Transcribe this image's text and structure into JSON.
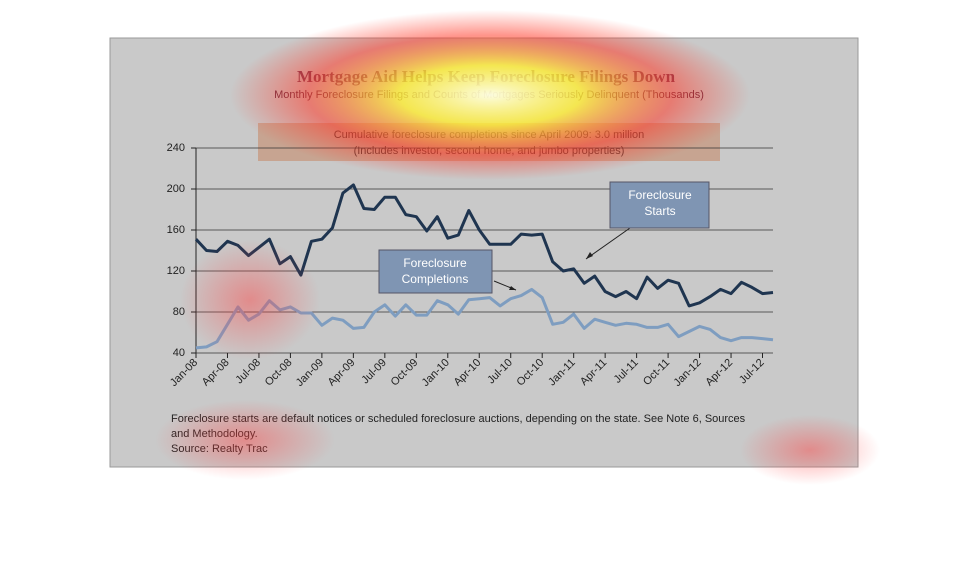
{
  "chart_data": {
    "type": "line",
    "title": "Mortgage Aid Helps Keep Foreclosure Filings Down",
    "subtitle": "Monthly Foreclosure Filings and Counts of Mortgages Seriously Delinquent (Thousands)",
    "box_note": [
      "Cumulative foreclosure completions since April 2009: 3.0 million",
      "(Includes investor, second home, and jumbo properties)"
    ],
    "annotations": [
      [
        "Foreclosure",
        "Starts"
      ],
      [
        "Foreclosure",
        "Completions"
      ]
    ],
    "footnote": [
      "Foreclosure starts are default notices or scheduled foreclosure auctions, depending on the state. See Note 6, Sources",
      "and Methodology.",
      "Source: Realty Trac"
    ],
    "categories": [
      "Jan-08",
      null,
      null,
      "Apr-08",
      null,
      null,
      "Jul-08",
      null,
      null,
      "Oct-08",
      null,
      null,
      "Jan-09",
      null,
      null,
      "Apr-09",
      null,
      null,
      "Jul-09",
      null,
      null,
      "Oct-09",
      null,
      null,
      "Jan-10",
      null,
      null,
      "Apr-10",
      null,
      null,
      "Jul-10",
      null,
      null,
      "Oct-10",
      null,
      null,
      "Jan-11",
      null,
      null,
      "Apr-11",
      null,
      null,
      "Jul-11",
      null,
      null,
      "Oct-11",
      null,
      null,
      "Jan-12",
      null,
      null,
      "Apr-12",
      null,
      null,
      "Jul-12",
      null
    ],
    "series": [
      {
        "name": "Foreclosure Starts",
        "color": "#1f3550",
        "values": [
          151,
          140,
          139,
          149,
          145,
          135,
          143,
          151,
          127,
          134,
          116,
          149,
          151,
          162,
          196,
          204,
          181,
          180,
          192,
          192,
          175,
          173,
          159,
          173,
          152,
          155,
          179,
          160,
          146,
          146,
          146,
          156,
          155,
          156,
          129,
          120,
          122,
          108,
          115,
          100,
          95,
          100,
          93,
          114,
          103,
          111,
          108,
          86,
          89,
          95,
          102,
          98,
          109,
          104,
          98,
          99
        ]
      },
      {
        "name": "Foreclosure Completions",
        "color": "#7e9dc0",
        "values": [
          45,
          46,
          51,
          68,
          85,
          72,
          78,
          91,
          82,
          85,
          79,
          79,
          67,
          74,
          72,
          64,
          65,
          80,
          87,
          76,
          87,
          77,
          77,
          91,
          87,
          78,
          92,
          93,
          94,
          86,
          93,
          96,
          102,
          94,
          68,
          70,
          78,
          64,
          73,
          70,
          67,
          69,
          68,
          65,
          65,
          68,
          56,
          61,
          66,
          63,
          55,
          52,
          55,
          55,
          54,
          53
        ]
      }
    ],
    "ylim": [
      40,
      240
    ],
    "yticks": [
      40,
      80,
      120,
      160,
      200,
      240
    ],
    "grid": true
  }
}
